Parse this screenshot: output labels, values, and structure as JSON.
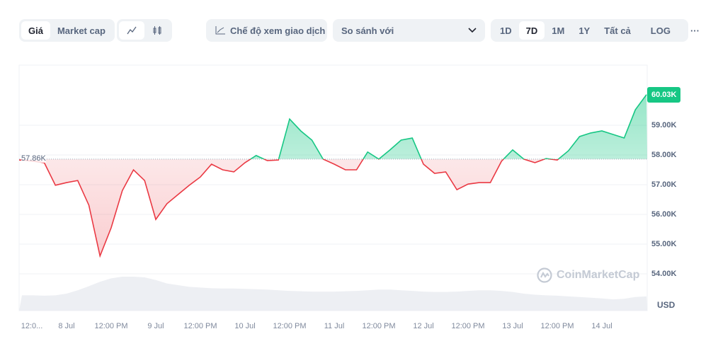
{
  "toolbar": {
    "type_tabs": [
      "Giá",
      "Market cap"
    ],
    "chart_style_icons": [
      "line-chart-icon",
      "candlestick-icon"
    ],
    "trading_view_label": "Chế độ xem giao dịch",
    "compare_placeholder": "So sánh với",
    "ranges": [
      "1D",
      "7D",
      "1M",
      "1Y",
      "Tất cả"
    ],
    "active_range": "7D",
    "log_label": "LOG",
    "more_label": "···"
  },
  "chart_data": {
    "type": "area",
    "currency": "USD",
    "baseline_label": "57.86K",
    "baseline": 57.86,
    "current_label": "60.03K",
    "up_color": "#16c784",
    "down_color": "#ea3943",
    "ylim": [
      53.4,
      61.2
    ],
    "y_ticks": [
      "54.00K",
      "55.00K",
      "56.00K",
      "57.00K",
      "58.00K",
      "59.00K"
    ],
    "y_tick_values": [
      54,
      55,
      56,
      57,
      58,
      59
    ],
    "x_ticks": [
      "12:0...",
      "8 Jul",
      "12:00 PM",
      "9 Jul",
      "12:00 PM",
      "10 Jul",
      "12:00 PM",
      "11 Jul",
      "12:00 PM",
      "12 Jul",
      "12:00 PM",
      "13 Jul",
      "12:00 PM",
      "14 Jul"
    ],
    "x_start": "7 Jul 12:00",
    "x_step_hours": 3,
    "prices": [
      57.83,
      57.79,
      57.74,
      56.98,
      57.07,
      57.14,
      56.31,
      54.6,
      55.55,
      56.8,
      57.5,
      57.14,
      55.83,
      56.36,
      56.67,
      56.98,
      57.26,
      57.69,
      57.5,
      57.43,
      57.74,
      57.98,
      57.81,
      57.83,
      59.21,
      58.81,
      58.5,
      57.86,
      57.69,
      57.5,
      57.5,
      58.1,
      57.86,
      58.17,
      58.5,
      58.57,
      57.69,
      57.38,
      57.43,
      56.83,
      57.02,
      57.07,
      57.07,
      57.79,
      58.17,
      57.86,
      57.74,
      57.88,
      57.83,
      58.14,
      58.62,
      58.74,
      58.81,
      58.69,
      58.57,
      59.52,
      60.03
    ],
    "volume_relative": [
      0.45,
      0.45,
      0.44,
      0.45,
      0.5,
      0.6,
      0.72,
      0.85,
      0.95,
      1.0,
      1.0,
      0.98,
      0.9,
      0.8,
      0.75,
      0.7,
      0.68,
      0.66,
      0.65,
      0.65,
      0.64,
      0.63,
      0.62,
      0.6,
      0.58,
      0.57,
      0.56,
      0.56,
      0.56,
      0.57,
      0.58,
      0.6,
      0.62,
      0.62,
      0.6,
      0.58,
      0.56,
      0.55,
      0.55,
      0.56,
      0.58,
      0.6,
      0.6,
      0.58,
      0.55,
      0.5,
      0.47,
      0.45,
      0.44,
      0.42,
      0.4,
      0.38,
      0.36,
      0.33,
      0.35,
      0.4,
      0.42
    ],
    "watermark": "CoinMarketCap"
  }
}
